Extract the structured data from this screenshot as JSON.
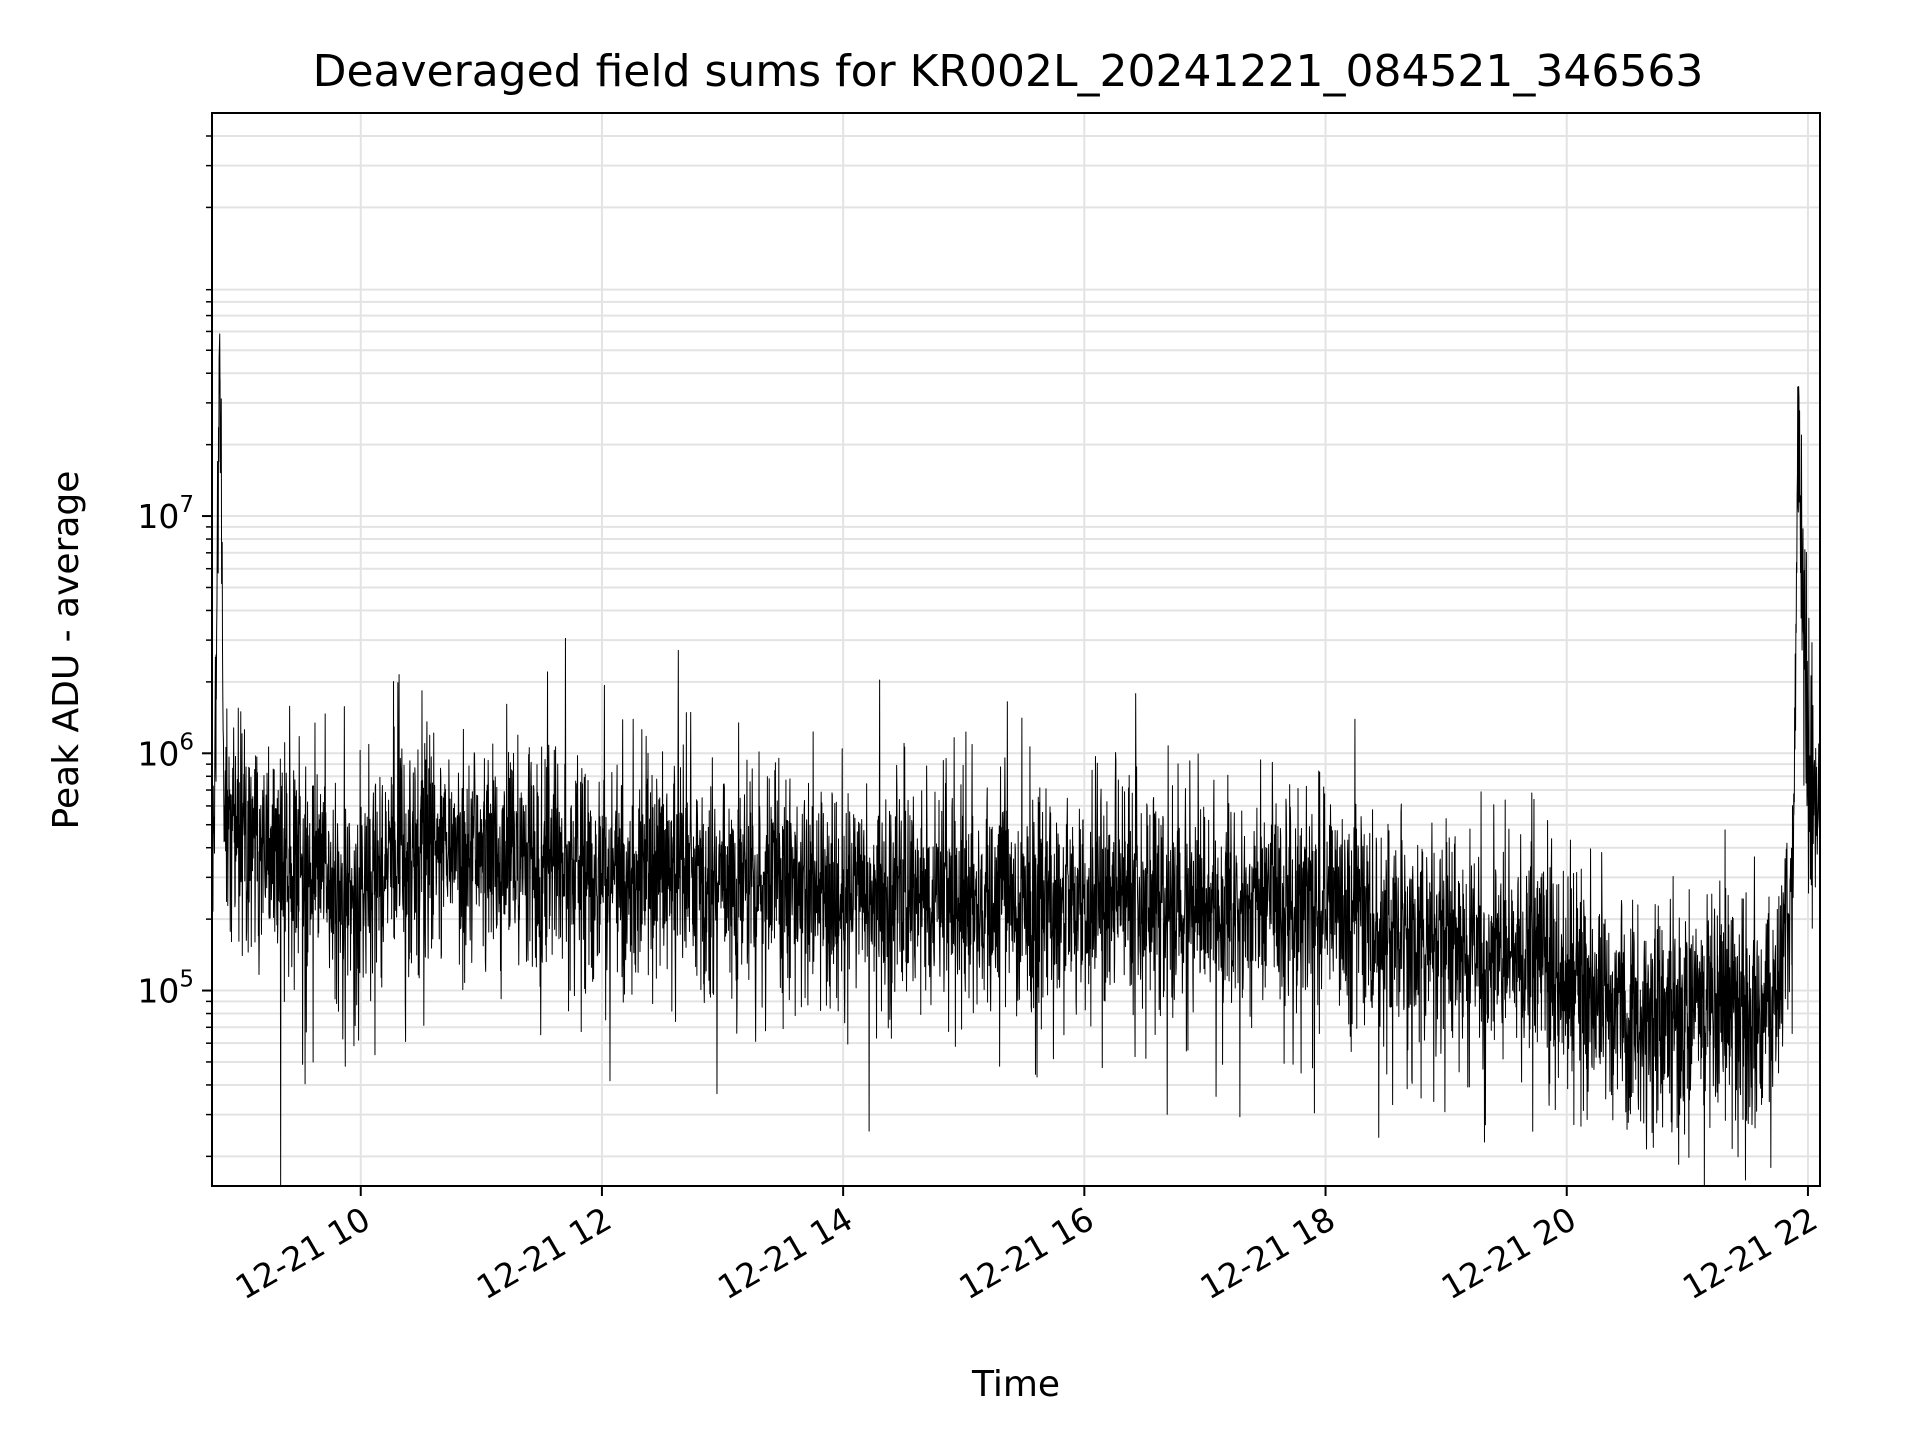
{
  "chart_data": {
    "type": "line",
    "title": "Deaveraged field sums for KR002L_20241221_084521_346563",
    "xlabel": "Time",
    "ylabel": "Peak ADU - average",
    "x_scale": "time",
    "y_scale": "log",
    "xlim": [
      "12-21 08:46",
      "12-21 22:06"
    ],
    "ylim": [
      15000,
      500000000
    ],
    "x_ticks": [
      "12-21 10",
      "12-21 12",
      "12-21 14",
      "12-21 16",
      "12-21 18",
      "12-21 20",
      "12-21 22"
    ],
    "y_ticks": [
      {
        "value": 100000,
        "base": "10",
        "exp": "5"
      },
      {
        "value": 1000000,
        "base": "10",
        "exp": "6"
      },
      {
        "value": 10000000,
        "base": "10",
        "exp": "7"
      }
    ],
    "grid": true,
    "line_color": "#000000",
    "series": [
      {
        "x": [
          "12-21 08:46",
          "12-21 08:48",
          "12-21 08:50",
          "12-21 08:52",
          "12-21 09:00",
          "12-21 09:10",
          "12-21 09:20",
          "12-21 09:30",
          "12-21 09:40",
          "12-21 09:50",
          "12-21 10:00",
          "12-21 10:15",
          "12-21 10:30",
          "12-21 10:45",
          "12-21 11:00",
          "12-21 11:15",
          "12-21 11:30",
          "12-21 11:45",
          "12-21 12:00",
          "12-21 12:15",
          "12-21 12:30",
          "12-21 12:45",
          "12-21 13:00",
          "12-21 13:30",
          "12-21 14:00",
          "12-21 14:30",
          "12-21 15:00",
          "12-21 15:30",
          "12-21 16:00",
          "12-21 16:30",
          "12-21 17:00",
          "12-21 17:30",
          "12-21 18:00",
          "12-21 18:30",
          "12-21 19:00",
          "12-21 19:30",
          "12-21 19:45",
          "12-21 20:00",
          "12-21 20:15",
          "12-21 20:30",
          "12-21 20:45",
          "12-21 21:00",
          "12-21 21:15",
          "12-21 21:30",
          "12-21 21:40",
          "12-21 21:45",
          "12-21 21:52",
          "12-21 21:53",
          "12-21 21:55",
          "12-21 22:00",
          "12-21 22:06"
        ],
        "y": [
          300000,
          2600000,
          38000000,
          600000,
          500000,
          450000,
          350000,
          300000,
          280000,
          260000,
          300000,
          320000,
          380000,
          400000,
          420000,
          380000,
          340000,
          360000,
          320000,
          300000,
          380000,
          320000,
          280000,
          270000,
          260000,
          250000,
          250000,
          240000,
          250000,
          240000,
          230000,
          220000,
          210000,
          190000,
          160000,
          150000,
          140000,
          130000,
          100000,
          80000,
          75000,
          80000,
          85000,
          80000,
          90000,
          120000,
          350000,
          550000,
          24000000,
          700000,
          600000
        ]
      }
    ]
  }
}
